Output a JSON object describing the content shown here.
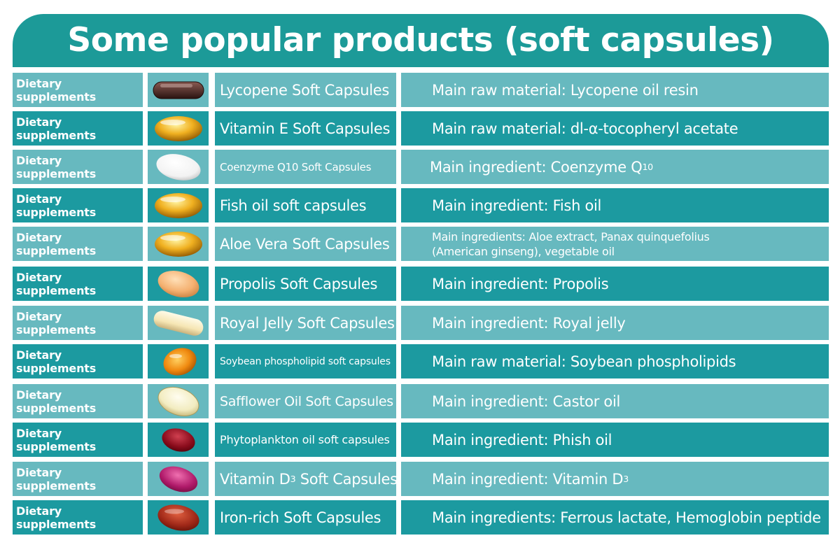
{
  "title": "Some popular products (soft capsules)",
  "colors": {
    "header": "#1c9a98",
    "row_light": "#67b9bf",
    "row_dark": "#1c9aa0",
    "text": "#ffffff"
  },
  "rows": [
    {
      "category": "Dietary supplements",
      "product": "Lycopene Soft Capsules",
      "description": "Main raw material: Lycopene oil resin",
      "capsule_icon": "dark-brown-oblong-capsule-icon"
    },
    {
      "category": "Dietary supplements",
      "product": "Vitamin E Soft Capsules",
      "description": "Main raw material: dl-α-tocopheryl acetate",
      "capsule_icon": "golden-oval-capsule-icon"
    },
    {
      "category": "Dietary supplements",
      "product": "Coenzyme Q10 Soft Capsules",
      "description_prefix": "Main ingredient: Coenzyme Q",
      "description_sub": "10",
      "capsule_icon": "white-oval-capsule-icon"
    },
    {
      "category": "Dietary supplements",
      "product": "Fish oil soft capsules",
      "description": "Main ingredient: Fish oil",
      "capsule_icon": "golden-oval-capsule-icon"
    },
    {
      "category": "Dietary supplements",
      "product": "Aloe Vera Soft Capsules",
      "description_line1": "Main ingredients: Aloe extract, Panax quinquefolius",
      "description_line2": "(American ginseng), vegetable oil",
      "capsule_icon": "golden-oval-capsule-icon"
    },
    {
      "category": "Dietary supplements",
      "product": "Propolis Soft Capsules",
      "description": "Main ingredient: Propolis",
      "capsule_icon": "peach-oval-capsule-icon"
    },
    {
      "category": "Dietary supplements",
      "product": "Royal Jelly Soft Capsules",
      "description": "Main ingredient: Royal jelly",
      "capsule_icon": "cream-oblong-capsule-icon"
    },
    {
      "category": "Dietary supplements",
      "product": "Soybean phospholipid soft capsules",
      "description": "Main raw material: Soybean phospholipids",
      "capsule_icon": "amber-oval-capsule-icon"
    },
    {
      "category": "Dietary supplements",
      "product": "Safflower Oil Soft Capsules",
      "description": "Main ingredient: Castor oil",
      "capsule_icon": "pale-yellow-oval-capsule-icon"
    },
    {
      "category": "Dietary supplements",
      "product": "Phytoplankton oil soft capsules",
      "description": "Main ingredient: Phish oil",
      "capsule_icon": "dark-red-oval-capsule-icon"
    },
    {
      "category": "Dietary supplements",
      "product_prefix": "Vitamin D",
      "product_sub": "3",
      "product_suffix": " Soft Capsules",
      "description_prefix": "Main ingredient: Vitamin D",
      "description_sub": "3",
      "capsule_icon": "magenta-oval-capsule-icon"
    },
    {
      "category": "Dietary supplements",
      "product": "Iron-rich Soft Capsules",
      "description": "Main ingredients: Ferrous lactate, Hemoglobin peptide",
      "capsule_icon": "red-brown-oval-capsule-icon"
    }
  ]
}
